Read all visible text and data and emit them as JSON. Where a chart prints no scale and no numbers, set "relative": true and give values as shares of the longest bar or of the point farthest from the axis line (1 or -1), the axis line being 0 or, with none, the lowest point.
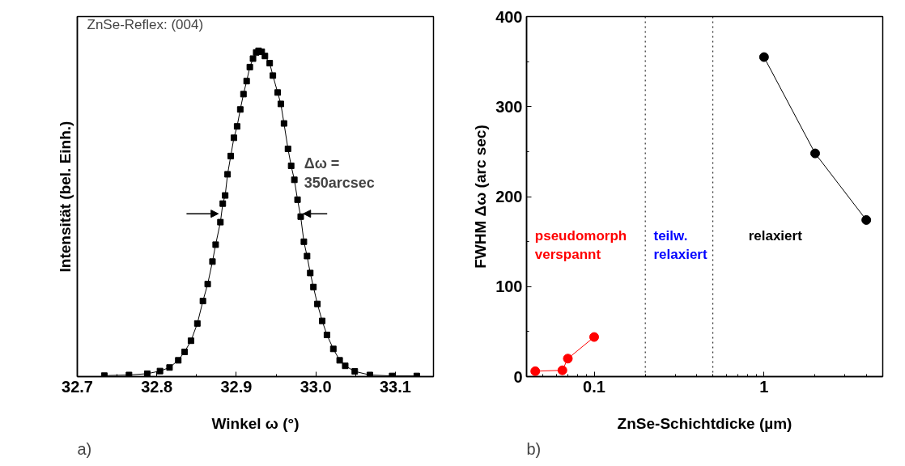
{
  "chart_data": [
    {
      "type": "line",
      "relative": true,
      "marker": "square",
      "line_style": "solid",
      "xlabel": "Winkel ω (°)",
      "ylabel": "Intensität (bel. Einh.)",
      "xlim": [
        32.7,
        33.148
      ],
      "xticks": [
        32.7,
        32.8,
        32.9,
        {
          "value": 33.0,
          "label": "33.0"
        },
        33.1
      ],
      "tick_labels": "x",
      "grid": false,
      "x": [
        32.734,
        32.765,
        32.788,
        32.804,
        32.816,
        32.827,
        32.835,
        32.843,
        32.851,
        32.858,
        32.864,
        32.87,
        32.874,
        32.88,
        32.883,
        32.886,
        32.889,
        32.893,
        32.897,
        32.901,
        32.905,
        32.909,
        32.913,
        32.917,
        32.921,
        32.925,
        32.928,
        32.932,
        32.936,
        32.942,
        32.946,
        32.952,
        32.956,
        32.96,
        32.965,
        32.969,
        32.973,
        32.977,
        32.981,
        32.985,
        32.989,
        32.993,
        32.997,
        33.002,
        33.008,
        33.014,
        33.022,
        33.03,
        33.037,
        33.049,
        33.068,
        33.096,
        33.127
      ],
      "series": [
        {
          "color": "#000000",
          "values": [
            0.003,
            0.005,
            0.009,
            0.017,
            0.028,
            0.05,
            0.076,
            0.11,
            0.163,
            0.232,
            0.284,
            0.353,
            0.405,
            0.474,
            0.531,
            0.556,
            0.621,
            0.677,
            0.733,
            0.768,
            0.82,
            0.867,
            0.907,
            0.95,
            0.976,
            0.995,
            1.0,
            0.997,
            0.984,
            0.962,
            0.924,
            0.872,
            0.837,
            0.777,
            0.699,
            0.647,
            0.604,
            0.543,
            0.491,
            0.414,
            0.37,
            0.318,
            0.275,
            0.223,
            0.171,
            0.128,
            0.085,
            0.05,
            0.033,
            0.016,
            0.005,
            0.002,
            0.002
          ]
        }
      ],
      "annotations": [
        "ZnSe-Reflex: (004)",
        "Δω =\n350arcsec",
        "a)"
      ]
    },
    {
      "type": "line",
      "marker": "circle",
      "line_style": "solid",
      "log": "x",
      "xlabel": "ZnSe-Schichtdicke (µm)",
      "ylabel": "FWHM Δω (arc sec)",
      "xlim": [
        0.04,
        5
      ],
      "ylim": [
        0,
        400
      ],
      "xticks": [
        0.1,
        1
      ],
      "yticks": [
        0,
        100,
        200,
        300,
        400
      ],
      "grid": false,
      "series": [
        {
          "color": "#ff0000",
          "x": [
            0.045,
            0.065,
            0.07,
            0.1
          ],
          "values": [
            6,
            7,
            20,
            44
          ]
        },
        {
          "color": "#000000",
          "x": [
            1,
            2,
            4
          ],
          "values": [
            355,
            248,
            174
          ]
        }
      ],
      "ref_lines": [
        {
          "axis": "x",
          "value": 0.2,
          "color": "#000000",
          "line_style": "dotted"
        },
        {
          "axis": "x",
          "value": 0.5,
          "color": "#000000",
          "line_style": "dotted"
        }
      ],
      "annotations": [
        "pseudomorph\nverspannt",
        "teilw.\nrelaxiert",
        "relaxiert",
        "b)"
      ]
    }
  ]
}
